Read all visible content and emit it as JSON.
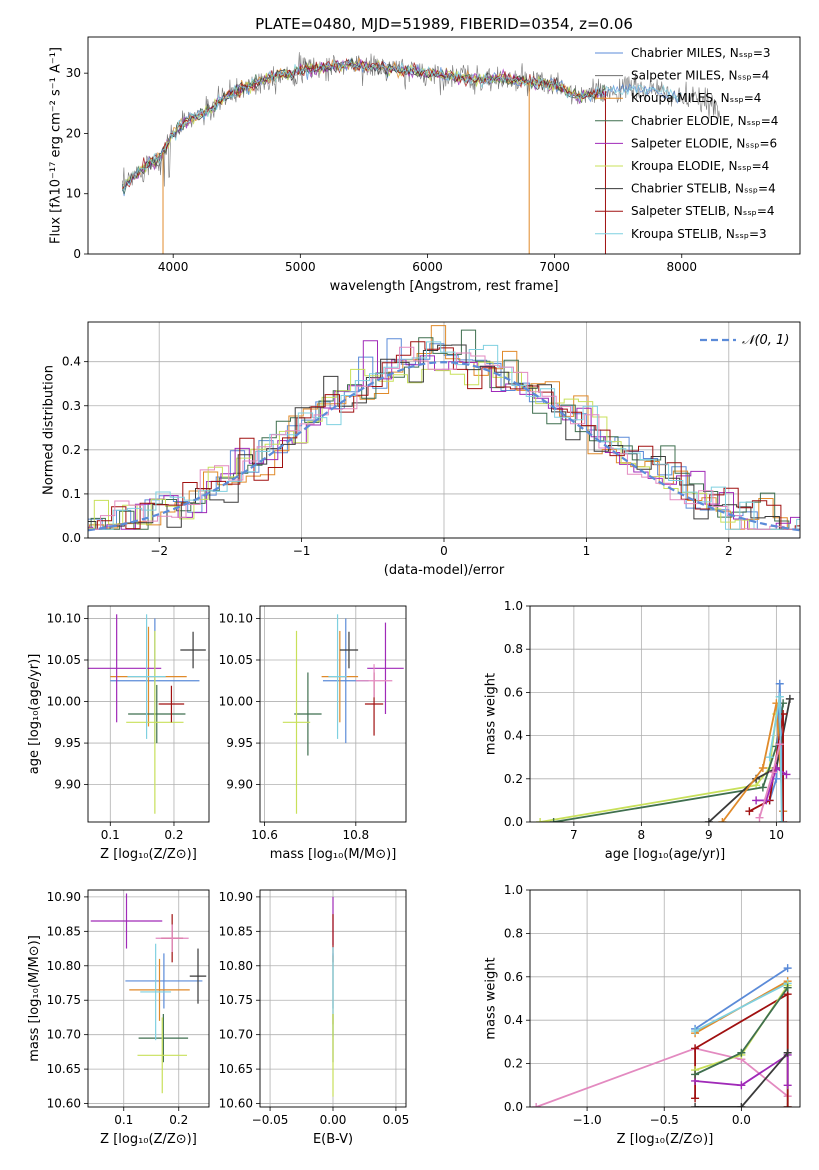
{
  "title": "PLATE=0480, MJD=51989, FIBERID=0354, z=0.06",
  "colors": {
    "chabrier_miles": "#5b8bd8",
    "salpeter_miles": "#6f6f6f",
    "kroupa_miles": "#e08a2a",
    "chabrier_elodie": "#3f6f4f",
    "salpeter_elodie": "#a02ab8",
    "kroupa_elodie": "#c8e05a",
    "chabrier_stelib": "#3a3a3a",
    "salpeter_stelib": "#a01010",
    "kroupa_stelib": "#7fd0e0",
    "pink": "#e38ac0",
    "normal": "#5b8bd8"
  },
  "chart_data": [
    {
      "id": "spectrum",
      "type": "line",
      "title": "PLATE=0480, MJD=51989, FIBERID=0354, z=0.06",
      "xlabel": "wavelength [Angstrom, rest frame]",
      "ylabel": "Flux [fλ10⁻¹⁷ erg cm⁻² s⁻¹ A⁻¹]",
      "xlim": [
        3330,
        8930
      ],
      "ylim": [
        0,
        36
      ],
      "xticks": [
        "4000",
        "5000",
        "6000",
        "7000",
        "8000"
      ],
      "xtick_values": [
        4000,
        5000,
        6000,
        7000,
        8000
      ],
      "yticks": [
        "0",
        "10",
        "20",
        "30"
      ],
      "ytick_values": [
        0,
        10,
        20,
        30
      ],
      "grid": false,
      "legend_position": "top-right",
      "legend": [
        "Chabrier MILES, N_SSP=3",
        "Salpeter MILES, N_SSP=4",
        "Kroupa MILES, N_SSP=4",
        "Chabrier ELODIE, N_SSP=4",
        "Salpeter ELODIE, N_SSP=6",
        "Kroupa ELODIE, N_SSP=4",
        "Chabrier STELIB, N_SSP=4",
        "Salpeter STELIB, N_SSP=4",
        "Kroupa STELIB, N_SSP=3"
      ],
      "continuum": {
        "x": [
          3600,
          3700,
          3800,
          3900,
          4000,
          4100,
          4200,
          4300,
          4400,
          4500,
          4600,
          4800,
          5000,
          5200,
          5400,
          5600,
          5800,
          6000,
          6200,
          6400,
          6600,
          6800,
          7000,
          7200,
          7400,
          7600,
          7800,
          8000,
          8200,
          8300
        ],
        "y": [
          11,
          13,
          15,
          16,
          20,
          22,
          23,
          24,
          26,
          27,
          28,
          29.5,
          30.5,
          31,
          31.5,
          31,
          30.5,
          30,
          29.5,
          29,
          29,
          28.5,
          28,
          26,
          27,
          27.5,
          27,
          26,
          25,
          24
        ]
      }
    },
    {
      "id": "residuals",
      "type": "line",
      "xlabel": "(data-model)/error",
      "ylabel": "Normed distribution",
      "xlim": [
        -2.5,
        2.5
      ],
      "ylim": [
        0,
        0.49
      ],
      "xticks": [
        "−2",
        "−1",
        "0",
        "1",
        "2"
      ],
      "xtick_values": [
        -2,
        -1,
        0,
        1,
        2
      ],
      "yticks": [
        "0.0",
        "0.1",
        "0.2",
        "0.3",
        "0.4"
      ],
      "ytick_values": [
        0,
        0.1,
        0.2,
        0.3,
        0.4
      ],
      "grid": true,
      "legend_position": "top-right",
      "legend": [
        "𝒩(0, 1)"
      ],
      "series_note": "step histograms for each of the nine fits plus a dashed standard normal curve"
    },
    {
      "id": "age_vs_z",
      "type": "scatter",
      "xlabel": "Z [log₁₀(Z/Z⊙)]",
      "ylabel": "age [log₁₀(age/yr)]",
      "xlim": [
        0.065,
        0.255
      ],
      "ylim": [
        9.855,
        10.115
      ],
      "xticks": [
        "0.1",
        "0.2"
      ],
      "xtick_values": [
        0.1,
        0.2
      ],
      "yticks": [
        "9.90",
        "9.95",
        "10.00",
        "10.05",
        "10.10"
      ],
      "ytick_values": [
        9.9,
        9.95,
        10.0,
        10.05,
        10.1
      ],
      "grid": true,
      "points": [
        {
          "x": 0.17,
          "y": 10.025,
          "xerr": 0.07,
          "yerr": 0.075,
          "c": "chabrier_miles"
        },
        {
          "x": 0.16,
          "y": 10.03,
          "xerr": 0.06,
          "yerr": 0.06,
          "c": "kroupa_miles"
        },
        {
          "x": 0.173,
          "y": 9.985,
          "xerr": 0.045,
          "yerr": 0.035,
          "c": "chabrier_elodie"
        },
        {
          "x": 0.11,
          "y": 10.04,
          "xerr": 0.07,
          "yerr": 0.065,
          "c": "salpeter_elodie"
        },
        {
          "x": 0.17,
          "y": 9.975,
          "xerr": 0.045,
          "yerr": 0.11,
          "c": "kroupa_elodie"
        },
        {
          "x": 0.23,
          "y": 10.062,
          "xerr": 0.02,
          "yerr": 0.022,
          "c": "chabrier_stelib"
        },
        {
          "x": 0.196,
          "y": 9.997,
          "xerr": 0.02,
          "yerr": 0.022,
          "c": "salpeter_stelib"
        },
        {
          "x": 0.157,
          "y": 10.03,
          "xerr": 0.03,
          "yerr": 0.075,
          "c": "kroupa_stelib"
        }
      ]
    },
    {
      "id": "age_vs_mass",
      "type": "scatter",
      "xlabel": "mass [log₁₀(M/M⊙)]",
      "ylabel": "",
      "xlim": [
        10.59,
        10.91
      ],
      "ylim": [
        9.855,
        10.115
      ],
      "xticks": [
        "10.6",
        "10.8"
      ],
      "xtick_values": [
        10.6,
        10.8
      ],
      "yticks": [
        "9.90",
        "9.95",
        "10.00",
        "10.05",
        "10.10"
      ],
      "ytick_values": [
        9.9,
        9.95,
        10.0,
        10.05,
        10.1
      ],
      "grid": true,
      "points": [
        {
          "x": 10.778,
          "y": 10.025,
          "xerr": 0.05,
          "yerr": 0.075,
          "c": "chabrier_miles"
        },
        {
          "x": 10.765,
          "y": 10.03,
          "xerr": 0.04,
          "yerr": 0.055,
          "c": "kroupa_miles"
        },
        {
          "x": 10.695,
          "y": 9.985,
          "xerr": 0.03,
          "yerr": 0.05,
          "c": "chabrier_elodie"
        },
        {
          "x": 10.865,
          "y": 10.04,
          "xerr": 0.04,
          "yerr": 0.055,
          "c": "salpeter_elodie"
        },
        {
          "x": 10.67,
          "y": 9.975,
          "xerr": 0.03,
          "yerr": 0.11,
          "c": "kroupa_elodie"
        },
        {
          "x": 10.785,
          "y": 10.062,
          "xerr": 0.02,
          "yerr": 0.022,
          "c": "chabrier_stelib"
        },
        {
          "x": 10.84,
          "y": 9.997,
          "xerr": 0.02,
          "yerr": 0.038,
          "c": "salpeter_stelib"
        },
        {
          "x": 10.76,
          "y": 10.03,
          "xerr": 0.02,
          "yerr": 0.075,
          "c": "kroupa_stelib"
        },
        {
          "x": 10.84,
          "y": 10.025,
          "xerr": 0.04,
          "yerr": 0.02,
          "c": "pink"
        }
      ]
    },
    {
      "id": "weight_vs_age",
      "type": "line",
      "xlabel": "age  [log₁₀(age/yr)]",
      "ylabel": "mass weight",
      "xlim": [
        6.35,
        10.35
      ],
      "ylim": [
        0,
        1
      ],
      "xticks": [
        "7",
        "8",
        "9",
        "10"
      ],
      "xtick_values": [
        7,
        8,
        9,
        10
      ],
      "yticks": [
        "0.0",
        "0.2",
        "0.4",
        "0.6",
        "0.8",
        "1.0"
      ],
      "ytick_values": [
        0,
        0.2,
        0.4,
        0.6,
        0.8,
        1.0
      ],
      "grid": true,
      "series": [
        {
          "c": "kroupa_elodie",
          "x": [
            6.5,
            9.7,
            9.9,
            10.0,
            10.05
          ],
          "y": [
            0.0,
            0.17,
            0.25,
            0.5,
            0.58
          ]
        },
        {
          "c": "chabrier_elodie",
          "x": [
            6.7,
            9.8,
            10.0,
            10.1
          ],
          "y": [
            0.0,
            0.16,
            0.35,
            0.55
          ]
        },
        {
          "c": "chabrier_miles",
          "x": [
            9.9,
            10.0,
            10.05,
            10.1
          ],
          "y": [
            0.1,
            0.2,
            0.64,
            0.05
          ]
        },
        {
          "c": "chabrier_stelib",
          "x": [
            9.0,
            9.7,
            10.0,
            10.2
          ],
          "y": [
            0.0,
            0.2,
            0.25,
            0.57
          ]
        },
        {
          "c": "kroupa_miles",
          "x": [
            9.2,
            9.8,
            10.0,
            10.1
          ],
          "y": [
            0.0,
            0.25,
            0.55,
            0.05
          ]
        },
        {
          "c": "salpeter_stelib",
          "x": [
            9.6,
            9.9,
            10.1,
            10.1
          ],
          "y": [
            0.05,
            0.1,
            0.5,
            0.0
          ]
        },
        {
          "c": "salpeter_elodie",
          "x": [
            9.7,
            9.85,
            10.0,
            10.15
          ],
          "y": [
            0.1,
            0.1,
            0.25,
            0.22
          ]
        },
        {
          "c": "kroupa_stelib",
          "x": [
            9.9,
            10.05,
            10.08
          ],
          "y": [
            0.3,
            0.58,
            0.0
          ]
        },
        {
          "c": "pink",
          "x": [
            9.75,
            9.95,
            10.05
          ],
          "y": [
            0.02,
            0.23,
            0.36
          ]
        }
      ]
    },
    {
      "id": "mass_vs_z",
      "type": "scatter",
      "xlabel": "Z [log₁₀(Z/Z⊙)]",
      "ylabel": "mass [log₁₀(M/M⊙)]",
      "xlim": [
        0.035,
        0.255
      ],
      "ylim": [
        10.595,
        10.91
      ],
      "xticks": [
        "0.1",
        "0.2"
      ],
      "xtick_values": [
        0.1,
        0.2
      ],
      "yticks": [
        "10.60",
        "10.65",
        "10.70",
        "10.75",
        "10.80",
        "10.85",
        "10.90"
      ],
      "ytick_values": [
        10.6,
        10.65,
        10.7,
        10.75,
        10.8,
        10.85,
        10.9
      ],
      "grid": true,
      "points": [
        {
          "x": 0.173,
          "y": 10.778,
          "xerr": 0.07,
          "yerr": 0.04,
          "c": "chabrier_miles"
        },
        {
          "x": 0.165,
          "y": 10.765,
          "xerr": 0.055,
          "yerr": 0.045,
          "c": "kroupa_miles"
        },
        {
          "x": 0.172,
          "y": 10.695,
          "xerr": 0.045,
          "yerr": 0.035,
          "c": "chabrier_elodie"
        },
        {
          "x": 0.105,
          "y": 10.865,
          "xerr": 0.065,
          "yerr": 0.04,
          "c": "salpeter_elodie"
        },
        {
          "x": 0.17,
          "y": 10.67,
          "xerr": 0.045,
          "yerr": 0.055,
          "c": "kroupa_elodie"
        },
        {
          "x": 0.235,
          "y": 10.785,
          "xerr": 0.015,
          "yerr": 0.04,
          "c": "chabrier_stelib"
        },
        {
          "x": 0.188,
          "y": 10.84,
          "xerr": 0.02,
          "yerr": 0.035,
          "c": "salpeter_stelib"
        },
        {
          "x": 0.158,
          "y": 10.762,
          "xerr": 0.028,
          "yerr": 0.07,
          "c": "kroupa_stelib"
        },
        {
          "x": 0.188,
          "y": 10.84,
          "xerr": 0.03,
          "yerr": 0.02,
          "c": "pink"
        }
      ]
    },
    {
      "id": "mass_vs_ebv",
      "type": "scatter",
      "xlabel": "E(B-V)",
      "ylabel": "",
      "xlim": [
        -0.058,
        0.058
      ],
      "ylim": [
        10.595,
        10.91
      ],
      "xticks": [
        "−0.05",
        "0.00",
        "0.05"
      ],
      "xtick_values": [
        -0.05,
        0,
        0.05
      ],
      "yticks": [
        "10.60",
        "10.65",
        "10.70",
        "10.75",
        "10.80",
        "10.85",
        "10.90"
      ],
      "ytick_values": [
        10.6,
        10.65,
        10.7,
        10.75,
        10.8,
        10.85,
        10.9
      ],
      "grid": true,
      "points": [
        {
          "x": 0,
          "y": 10.865,
          "xerr": 0,
          "yerr": 0.035,
          "c": "salpeter_elodie"
        },
        {
          "x": 0,
          "y": 10.84,
          "xerr": 0,
          "yerr": 0.035,
          "c": "salpeter_stelib"
        },
        {
          "x": 0,
          "y": 10.778,
          "xerr": 0,
          "yerr": 0.04,
          "c": "chabrier_miles"
        },
        {
          "x": 0,
          "y": 10.765,
          "xerr": 0,
          "yerr": 0.05,
          "c": "kroupa_miles"
        },
        {
          "x": 0,
          "y": 10.762,
          "xerr": 0,
          "yerr": 0.065,
          "c": "kroupa_stelib"
        },
        {
          "x": 0,
          "y": 10.695,
          "xerr": 0,
          "yerr": 0.035,
          "c": "chabrier_elodie"
        },
        {
          "x": 0,
          "y": 10.67,
          "xerr": 0,
          "yerr": 0.06,
          "c": "kroupa_elodie"
        }
      ]
    },
    {
      "id": "weight_vs_z",
      "type": "line",
      "xlabel": "Z [log₁₀(Z/Z⊙)]",
      "ylabel": "mass weight",
      "xlim": [
        -1.37,
        0.38
      ],
      "ylim": [
        0,
        1
      ],
      "xticks": [
        "−1.0",
        "−0.5",
        "0.0"
      ],
      "xtick_values": [
        -1.0,
        -0.5,
        0.0
      ],
      "yticks": [
        "0.0",
        "0.2",
        "0.4",
        "0.6",
        "0.8",
        "1.0"
      ],
      "ytick_values": [
        0,
        0.2,
        0.4,
        0.6,
        0.8,
        1.0
      ],
      "grid": true,
      "series": [
        {
          "c": "chabrier_miles",
          "x": [
            -0.3,
            0.3
          ],
          "y": [
            0.36,
            0.64
          ]
        },
        {
          "c": "kroupa_miles",
          "x": [
            -0.3,
            0.3,
            0.3
          ],
          "y": [
            0.34,
            0.58,
            0.0
          ]
        },
        {
          "c": "kroupa_stelib",
          "x": [
            -0.3,
            0.3,
            0.3
          ],
          "y": [
            0.35,
            0.57,
            0.0
          ]
        },
        {
          "c": "pink",
          "x": [
            -1.33,
            -0.3,
            0.0,
            0.3
          ],
          "y": [
            0.0,
            0.27,
            0.22,
            0.05
          ]
        },
        {
          "c": "salpeter_stelib",
          "x": [
            -0.3,
            -0.3,
            0.3,
            0.3
          ],
          "y": [
            0.04,
            0.27,
            0.52,
            0.0
          ]
        },
        {
          "c": "salpeter_elodie",
          "x": [
            -0.3,
            0.0,
            0.3,
            0.3
          ],
          "y": [
            0.12,
            0.1,
            0.24,
            0.1
          ]
        },
        {
          "c": "kroupa_elodie",
          "x": [
            -0.3,
            0.0,
            0.3
          ],
          "y": [
            0.17,
            0.24,
            0.56
          ]
        },
        {
          "c": "chabrier_elodie",
          "x": [
            -0.3,
            0.0,
            0.3
          ],
          "y": [
            0.15,
            0.25,
            0.55
          ]
        },
        {
          "c": "chabrier_stelib",
          "x": [
            -0.3,
            0.0,
            0.3
          ],
          "y": [
            0.0,
            0.0,
            0.25
          ]
        }
      ]
    }
  ]
}
